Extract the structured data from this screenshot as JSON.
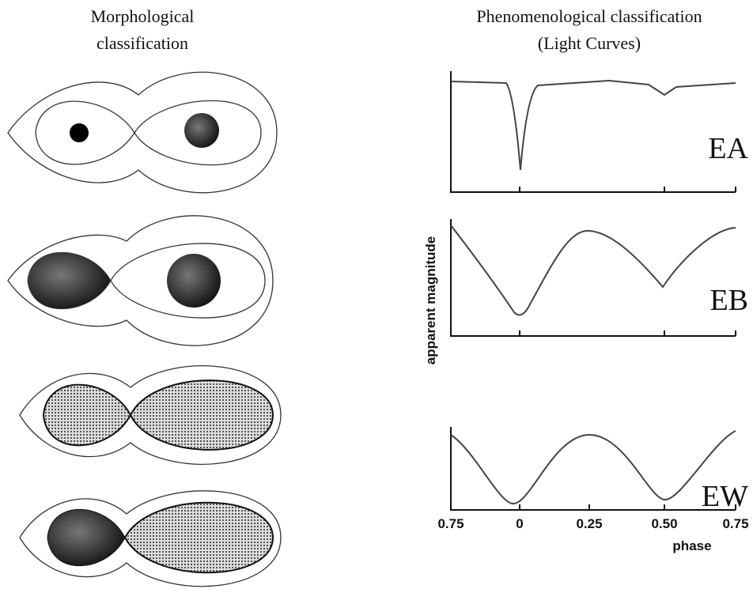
{
  "left_title": [
    "Morphological",
    "classification"
  ],
  "right_title": [
    "Phenomenological classification",
    "(Light Curves)"
  ],
  "y_label": "apparent magnitude",
  "panels": [
    "EA",
    "EB",
    "EW"
  ],
  "x_ticks": [
    "0.75",
    "0",
    "0.25",
    "0.50",
    "0.75"
  ],
  "x_label": "phase"
}
